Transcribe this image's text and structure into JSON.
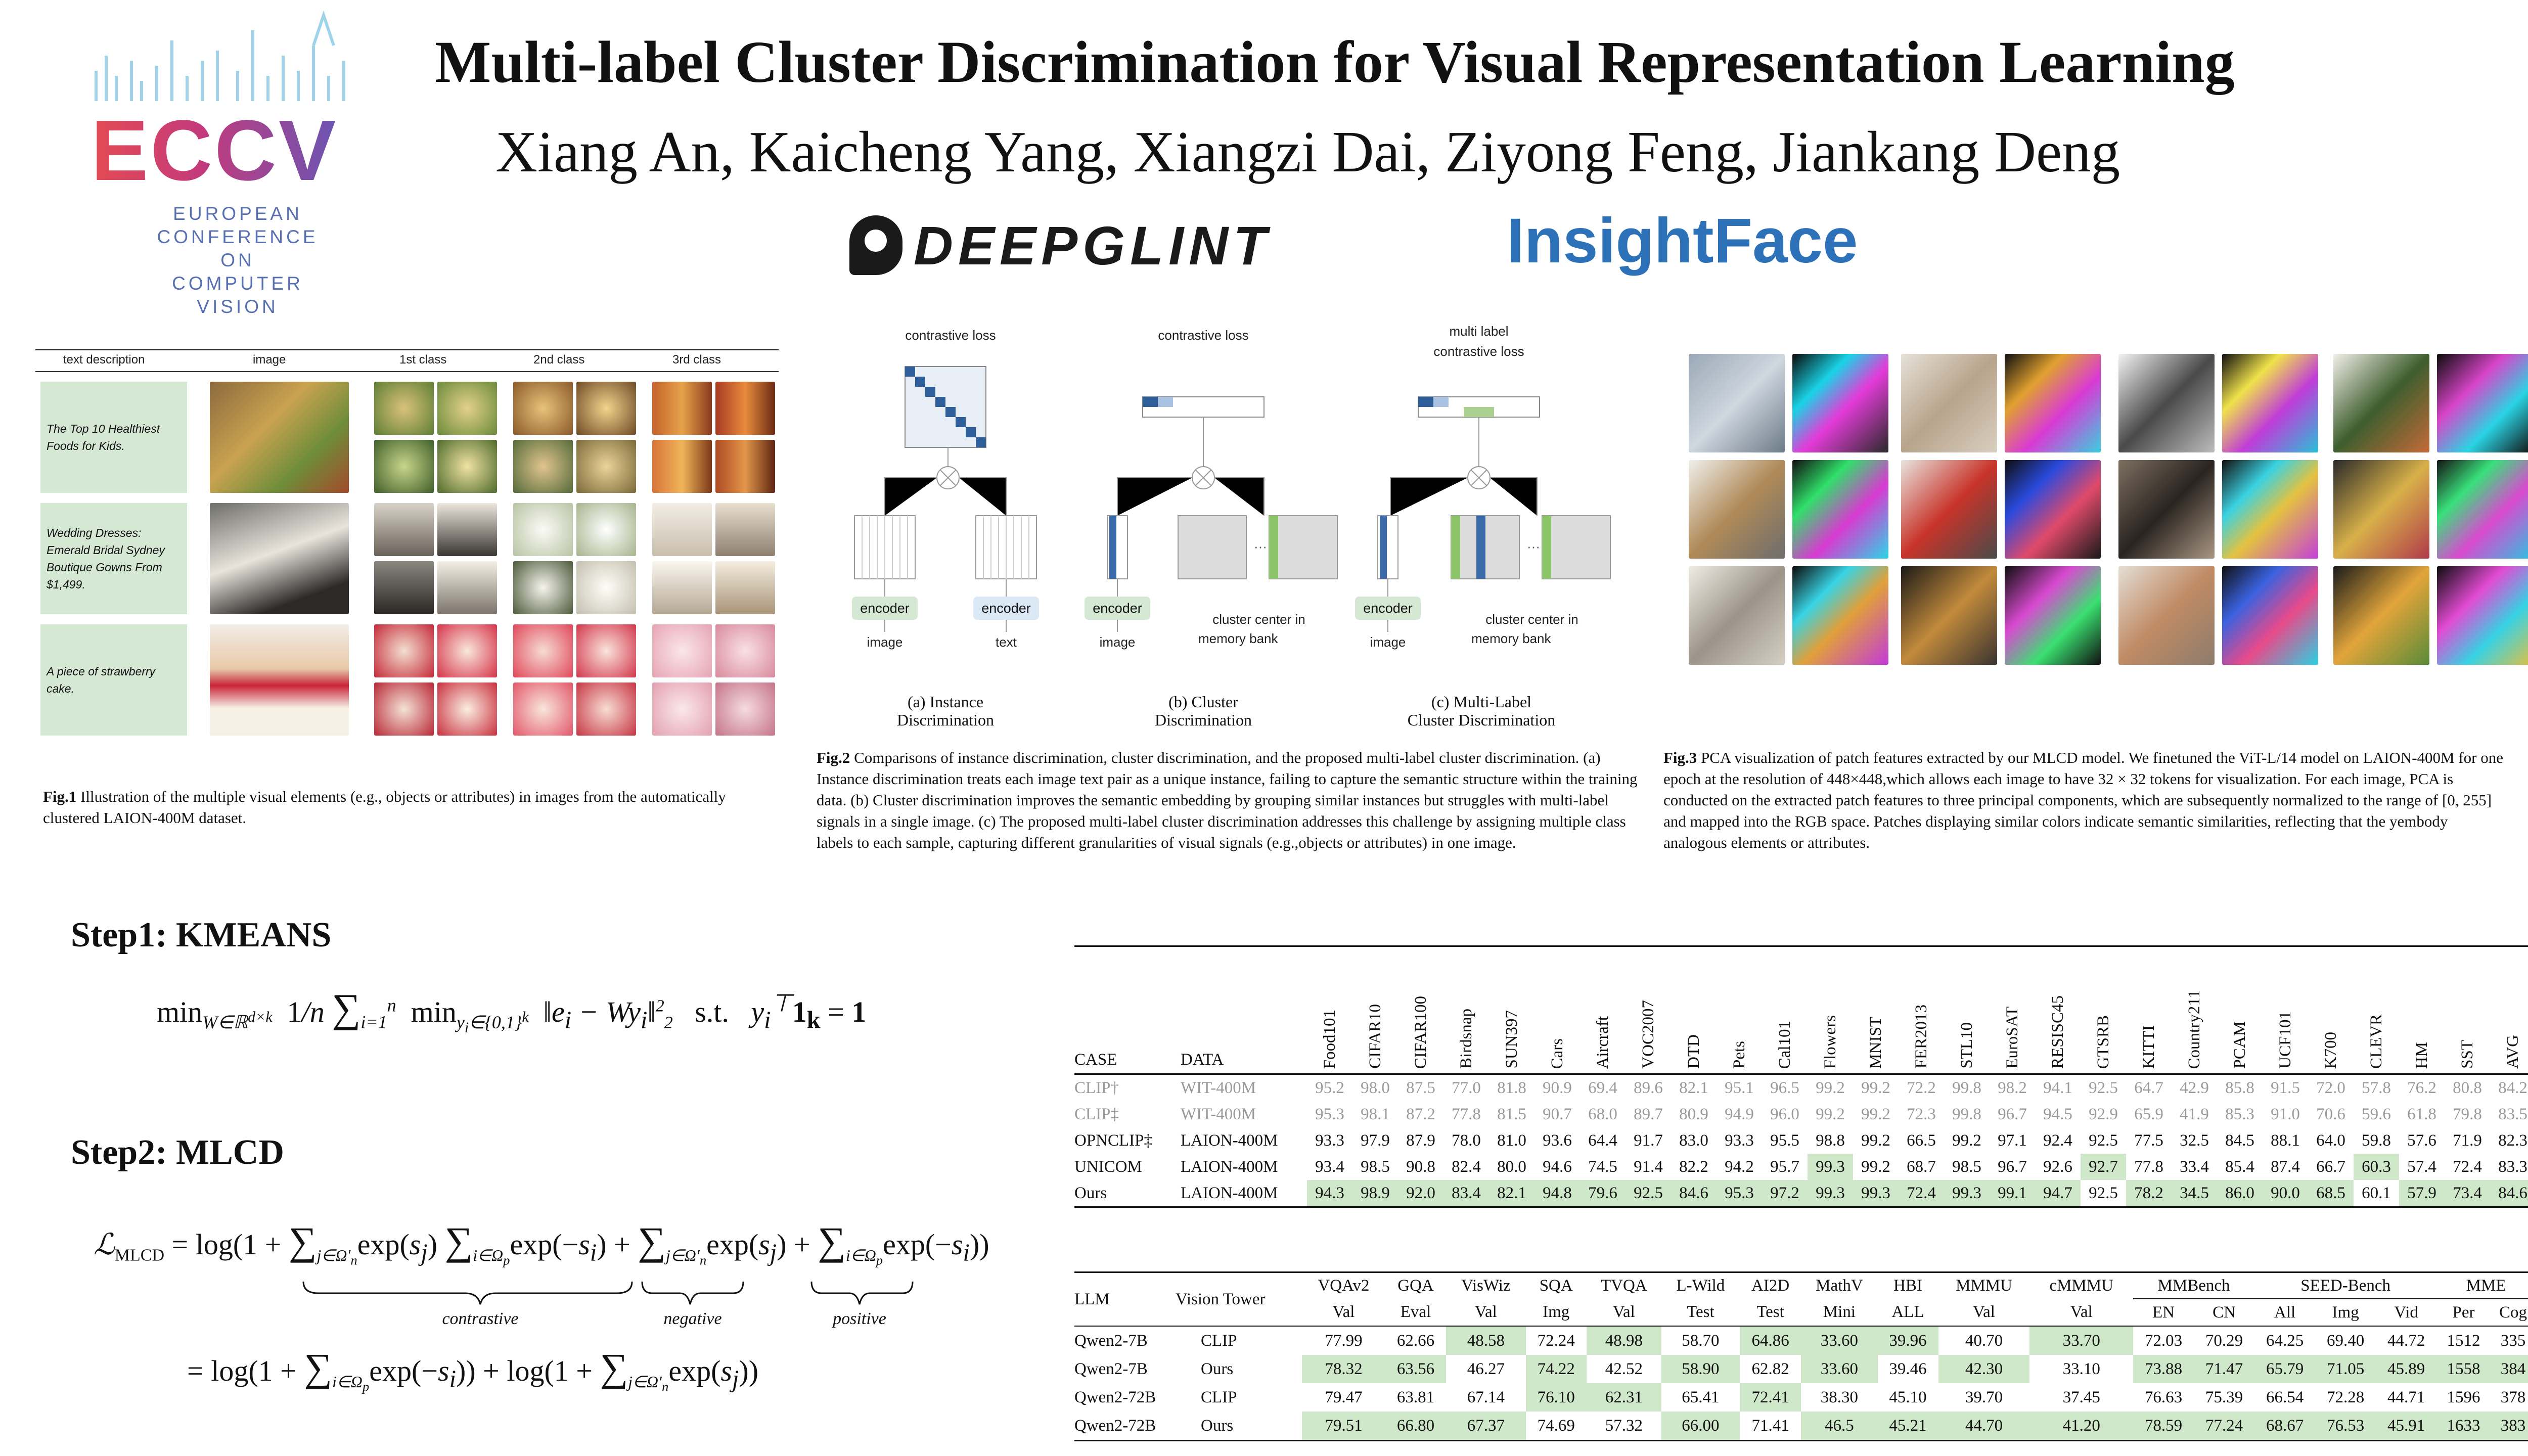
{
  "header": {
    "logo": {
      "name": "ECCV",
      "line1": "EUROPEAN",
      "line2": "CONFERENCE",
      "line3": "ON COMPUTER",
      "line4": "VISION"
    },
    "title": "Multi-label Cluster Discrimination for Visual Representation Learning",
    "authors": "Xiang An,  Kaicheng Yang,  Xiangzi Dai,  Ziyong Feng, Jiankang Deng",
    "affil1": "DEEPGLINT",
    "affil2": "InsightFace"
  },
  "fig1": {
    "headers": [
      "text description",
      "image",
      "1st class",
      "2nd class",
      "3rd class"
    ],
    "rows": [
      {
        "text": "The Top 10 Healthiest Foods for Kids."
      },
      {
        "text": "Wedding Dresses: Emerald Bridal Sydney Boutique Gowns From $1,499."
      },
      {
        "text": "A piece of strawberry cake."
      }
    ],
    "caption_label": "Fig.1",
    "caption": "Illustration of the multiple visual elements (e.g., objects or attributes) in images from the automatically clustered LAION-400M dataset."
  },
  "fig2": {
    "loss_a": "contrastive loss",
    "loss_b": "contrastive loss",
    "loss_c_1": "multi label",
    "loss_c_2": "contrastive loss",
    "encoder": "encoder",
    "image": "image",
    "text": "text",
    "cc_1": "cluster center in",
    "cc_2": "memory bank",
    "sub_a_1": "(a)  Instance",
    "sub_a_2": "Discrimination",
    "sub_b_1": "(b)  Cluster",
    "sub_b_2": "Discrimination",
    "sub_c_1": "(c)  Multi-Label",
    "sub_c_2": "Cluster Discrimination",
    "caption_label": "Fig.2",
    "caption": "Comparisons of instance discrimination, cluster discrimination, and the proposed multi-label cluster discrimination. (a) Instance discrimination treats each image text pair as a unique instance, failing to capture the semantic structure within the training data. (b) Cluster discrimination improves the semantic embedding by grouping similar instances but struggles with multi-label signals in a single image. (c) The proposed multi-label cluster discrimination addresses this challenge by assigning multiple class labels to each sample, capturing different granularities of visual signals (e.g.,objects or attributes) in one image."
  },
  "fig3": {
    "caption_label": "Fig.3",
    "caption": "PCA visualization of patch features extracted by our MLCD model. We finetuned the ViT-L/14 model on LAION-400M for one epoch at the resolution of 448×448,which allows each image to have 32 × 32 tokens for visualization. For each image, PCA is conducted on the extracted patch features to three principal components, which are subsequently normalized to the range of [0, 255] and mapped into the RGB space. Patches displaying similar colors indicate semantic similarities, reflecting that the yembody analogous elements or attributes."
  },
  "steps": {
    "step1": "Step1: KMEANS",
    "step2": "Step2: MLCD",
    "contrastive": "contrastive",
    "negative": "negative",
    "positive": "positive"
  },
  "table1": {
    "col_case": "CASE",
    "col_data": "DATA",
    "columns": [
      "Food101",
      "CIFAR10",
      "CIFAR100",
      "Birdsnap",
      "SUN397",
      "Cars",
      "Aircraft",
      "VOC2007",
      "DTD",
      "Pets",
      "Cal101",
      "Flowers",
      "MNIST",
      "FER2013",
      "STL10",
      "EuroSAT",
      "RESISC45",
      "GTSRB",
      "KITTI",
      "Country211",
      "PCAM",
      "UCF101",
      "K700",
      "CLEVR",
      "HM",
      "SST",
      "AVG"
    ],
    "rows": [
      {
        "case": "CLIP†",
        "data": "WIT-400M",
        "gray": true,
        "values": [
          "95.2",
          "98.0",
          "87.5",
          "77.0",
          "81.8",
          "90.9",
          "69.4",
          "89.6",
          "82.1",
          "95.1",
          "96.5",
          "99.2",
          "99.2",
          "72.2",
          "99.8",
          "98.2",
          "94.1",
          "92.5",
          "64.7",
          "42.9",
          "85.8",
          "91.5",
          "72.0",
          "57.8",
          "76.2",
          "80.8",
          "84.2"
        ],
        "hl": []
      },
      {
        "case": "CLIP‡",
        "data": "WIT-400M",
        "gray": true,
        "values": [
          "95.3",
          "98.1",
          "87.2",
          "77.8",
          "81.5",
          "90.7",
          "68.0",
          "89.7",
          "80.9",
          "94.9",
          "96.0",
          "99.2",
          "99.2",
          "72.3",
          "99.8",
          "96.7",
          "94.5",
          "92.9",
          "65.9",
          "41.9",
          "85.3",
          "91.0",
          "70.6",
          "59.6",
          "61.8",
          "79.8",
          "83.5"
        ],
        "hl": []
      },
      {
        "case": "OPNCLIP‡",
        "data": "LAION-400M",
        "gray": false,
        "values": [
          "93.3",
          "97.9",
          "87.9",
          "78.0",
          "81.0",
          "93.6",
          "64.4",
          "91.7",
          "83.0",
          "93.3",
          "95.5",
          "98.8",
          "99.2",
          "66.5",
          "99.2",
          "97.1",
          "92.4",
          "92.5",
          "77.5",
          "32.5",
          "84.5",
          "88.1",
          "64.0",
          "59.8",
          "57.6",
          "71.9",
          "82.3"
        ],
        "hl": []
      },
      {
        "case": "UNICOM",
        "data": "LAION-400M",
        "gray": false,
        "values": [
          "93.4",
          "98.5",
          "90.8",
          "82.4",
          "80.0",
          "94.6",
          "74.5",
          "91.4",
          "82.2",
          "94.2",
          "95.7",
          "99.3",
          "99.2",
          "68.7",
          "98.5",
          "96.7",
          "92.6",
          "92.7",
          "77.8",
          "33.4",
          "85.4",
          "87.4",
          "66.7",
          "60.3",
          "57.4",
          "72.4",
          "83.3"
        ],
        "hl": [
          11,
          17,
          23
        ]
      },
      {
        "case": "Ours",
        "data": "LAION-400M",
        "gray": false,
        "values": [
          "94.3",
          "98.9",
          "92.0",
          "83.4",
          "82.1",
          "94.8",
          "79.6",
          "92.5",
          "84.6",
          "95.3",
          "97.2",
          "99.3",
          "99.3",
          "72.4",
          "99.3",
          "99.1",
          "94.7",
          "92.5",
          "78.2",
          "34.5",
          "86.0",
          "90.0",
          "68.5",
          "60.1",
          "57.9",
          "73.4",
          "84.6"
        ],
        "hl": [
          0,
          1,
          2,
          3,
          4,
          5,
          6,
          7,
          8,
          9,
          10,
          11,
          12,
          13,
          14,
          15,
          16,
          18,
          19,
          20,
          21,
          22,
          24,
          25,
          26
        ]
      }
    ]
  },
  "table2": {
    "col_llm": "LLM",
    "col_vt": "Vision Tower",
    "groups": [
      "VQAv2",
      "GQA",
      "VisWiz",
      "SQA",
      "TVQA",
      "L-Wild",
      "AI2D",
      "MathV",
      "HBI",
      "MMMU",
      "cMMMU",
      "MMBench",
      "SEED-Bench",
      "MME"
    ],
    "subs": [
      "Val",
      "Eval",
      "Val",
      "Img",
      "Val",
      "Test",
      "Test",
      "Mini",
      "ALL",
      "Val",
      "Val",
      "EN",
      "CN",
      "All",
      "Img",
      "Vid",
      "Per",
      "Cog"
    ],
    "rows": [
      {
        "llm": "Qwen2-7B",
        "vt": "CLIP",
        "values": [
          "77.99",
          "62.66",
          "48.58",
          "72.24",
          "48.98",
          "58.70",
          "64.86",
          "33.60",
          "39.96",
          "40.70",
          "33.70",
          "72.03",
          "70.29",
          "64.25",
          "69.40",
          "44.72",
          "1512",
          "335"
        ],
        "hl": [
          2,
          4,
          6,
          7,
          8,
          10
        ]
      },
      {
        "llm": "Qwen2-7B",
        "vt": "Ours",
        "values": [
          "78.32",
          "63.56",
          "46.27",
          "74.22",
          "42.52",
          "58.90",
          "62.82",
          "33.60",
          "39.46",
          "42.30",
          "33.10",
          "73.88",
          "71.47",
          "65.79",
          "71.05",
          "45.89",
          "1558",
          "384"
        ],
        "hl": [
          0,
          1,
          3,
          5,
          7,
          9,
          11,
          12,
          13,
          14,
          15,
          16,
          17
        ]
      },
      {
        "llm": "Qwen2-72B",
        "vt": "CLIP",
        "values": [
          "79.47",
          "63.81",
          "67.14",
          "76.10",
          "62.31",
          "65.41",
          "72.41",
          "38.30",
          "45.10",
          "39.70",
          "37.45",
          "76.63",
          "75.39",
          "66.54",
          "72.28",
          "44.71",
          "1596",
          "378"
        ],
        "hl": [
          3,
          4,
          6
        ]
      },
      {
        "llm": "Qwen2-72B",
        "vt": "Ours",
        "values": [
          "79.51",
          "66.80",
          "67.37",
          "74.69",
          "57.32",
          "66.00",
          "71.41",
          "46.5",
          "45.21",
          "44.70",
          "41.20",
          "78.59",
          "77.24",
          "68.67",
          "76.53",
          "45.91",
          "1633",
          "383"
        ],
        "hl": [
          0,
          1,
          2,
          5,
          7,
          8,
          9,
          10,
          11,
          12,
          13,
          14,
          15,
          16,
          17
        ]
      }
    ]
  },
  "colors": {
    "accent_green": "#cfe8c9",
    "fig_green": "#d5e8d4",
    "enc_blue": "#dbe8f6",
    "insight_blue": "#2d72b8"
  }
}
